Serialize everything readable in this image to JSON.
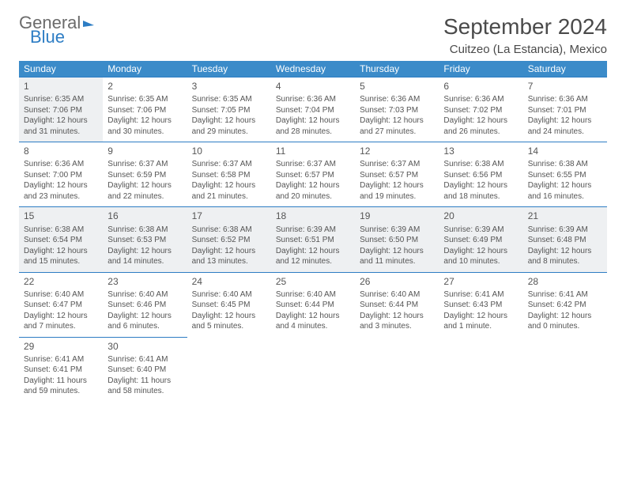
{
  "logo": {
    "text1": "General",
    "text2": "Blue"
  },
  "title": "September 2024",
  "location": "Cuitzeo (La Estancia), Mexico",
  "colors": {
    "accent": "#3b8bc9",
    "border": "#2d7dc4",
    "shade": "#eef0f2"
  },
  "dayHeaders": [
    "Sunday",
    "Monday",
    "Tuesday",
    "Wednesday",
    "Thursday",
    "Friday",
    "Saturday"
  ],
  "weeks": [
    [
      {
        "n": "1",
        "sr": "Sunrise: 6:35 AM",
        "ss": "Sunset: 7:06 PM",
        "dl1": "Daylight: 12 hours",
        "dl2": "and 31 minutes.",
        "shaded": true
      },
      {
        "n": "2",
        "sr": "Sunrise: 6:35 AM",
        "ss": "Sunset: 7:06 PM",
        "dl1": "Daylight: 12 hours",
        "dl2": "and 30 minutes."
      },
      {
        "n": "3",
        "sr": "Sunrise: 6:35 AM",
        "ss": "Sunset: 7:05 PM",
        "dl1": "Daylight: 12 hours",
        "dl2": "and 29 minutes."
      },
      {
        "n": "4",
        "sr": "Sunrise: 6:36 AM",
        "ss": "Sunset: 7:04 PM",
        "dl1": "Daylight: 12 hours",
        "dl2": "and 28 minutes."
      },
      {
        "n": "5",
        "sr": "Sunrise: 6:36 AM",
        "ss": "Sunset: 7:03 PM",
        "dl1": "Daylight: 12 hours",
        "dl2": "and 27 minutes."
      },
      {
        "n": "6",
        "sr": "Sunrise: 6:36 AM",
        "ss": "Sunset: 7:02 PM",
        "dl1": "Daylight: 12 hours",
        "dl2": "and 26 minutes."
      },
      {
        "n": "7",
        "sr": "Sunrise: 6:36 AM",
        "ss": "Sunset: 7:01 PM",
        "dl1": "Daylight: 12 hours",
        "dl2": "and 24 minutes."
      }
    ],
    [
      {
        "n": "8",
        "sr": "Sunrise: 6:36 AM",
        "ss": "Sunset: 7:00 PM",
        "dl1": "Daylight: 12 hours",
        "dl2": "and 23 minutes."
      },
      {
        "n": "9",
        "sr": "Sunrise: 6:37 AM",
        "ss": "Sunset: 6:59 PM",
        "dl1": "Daylight: 12 hours",
        "dl2": "and 22 minutes."
      },
      {
        "n": "10",
        "sr": "Sunrise: 6:37 AM",
        "ss": "Sunset: 6:58 PM",
        "dl1": "Daylight: 12 hours",
        "dl2": "and 21 minutes."
      },
      {
        "n": "11",
        "sr": "Sunrise: 6:37 AM",
        "ss": "Sunset: 6:57 PM",
        "dl1": "Daylight: 12 hours",
        "dl2": "and 20 minutes."
      },
      {
        "n": "12",
        "sr": "Sunrise: 6:37 AM",
        "ss": "Sunset: 6:57 PM",
        "dl1": "Daylight: 12 hours",
        "dl2": "and 19 minutes."
      },
      {
        "n": "13",
        "sr": "Sunrise: 6:38 AM",
        "ss": "Sunset: 6:56 PM",
        "dl1": "Daylight: 12 hours",
        "dl2": "and 18 minutes."
      },
      {
        "n": "14",
        "sr": "Sunrise: 6:38 AM",
        "ss": "Sunset: 6:55 PM",
        "dl1": "Daylight: 12 hours",
        "dl2": "and 16 minutes."
      }
    ],
    [
      {
        "n": "15",
        "sr": "Sunrise: 6:38 AM",
        "ss": "Sunset: 6:54 PM",
        "dl1": "Daylight: 12 hours",
        "dl2": "and 15 minutes.",
        "shaded": true
      },
      {
        "n": "16",
        "sr": "Sunrise: 6:38 AM",
        "ss": "Sunset: 6:53 PM",
        "dl1": "Daylight: 12 hours",
        "dl2": "and 14 minutes.",
        "shaded": true
      },
      {
        "n": "17",
        "sr": "Sunrise: 6:38 AM",
        "ss": "Sunset: 6:52 PM",
        "dl1": "Daylight: 12 hours",
        "dl2": "and 13 minutes.",
        "shaded": true
      },
      {
        "n": "18",
        "sr": "Sunrise: 6:39 AM",
        "ss": "Sunset: 6:51 PM",
        "dl1": "Daylight: 12 hours",
        "dl2": "and 12 minutes.",
        "shaded": true
      },
      {
        "n": "19",
        "sr": "Sunrise: 6:39 AM",
        "ss": "Sunset: 6:50 PM",
        "dl1": "Daylight: 12 hours",
        "dl2": "and 11 minutes.",
        "shaded": true
      },
      {
        "n": "20",
        "sr": "Sunrise: 6:39 AM",
        "ss": "Sunset: 6:49 PM",
        "dl1": "Daylight: 12 hours",
        "dl2": "and 10 minutes.",
        "shaded": true
      },
      {
        "n": "21",
        "sr": "Sunrise: 6:39 AM",
        "ss": "Sunset: 6:48 PM",
        "dl1": "Daylight: 12 hours",
        "dl2": "and 8 minutes.",
        "shaded": true
      }
    ],
    [
      {
        "n": "22",
        "sr": "Sunrise: 6:40 AM",
        "ss": "Sunset: 6:47 PM",
        "dl1": "Daylight: 12 hours",
        "dl2": "and 7 minutes."
      },
      {
        "n": "23",
        "sr": "Sunrise: 6:40 AM",
        "ss": "Sunset: 6:46 PM",
        "dl1": "Daylight: 12 hours",
        "dl2": "and 6 minutes."
      },
      {
        "n": "24",
        "sr": "Sunrise: 6:40 AM",
        "ss": "Sunset: 6:45 PM",
        "dl1": "Daylight: 12 hours",
        "dl2": "and 5 minutes."
      },
      {
        "n": "25",
        "sr": "Sunrise: 6:40 AM",
        "ss": "Sunset: 6:44 PM",
        "dl1": "Daylight: 12 hours",
        "dl2": "and 4 minutes."
      },
      {
        "n": "26",
        "sr": "Sunrise: 6:40 AM",
        "ss": "Sunset: 6:44 PM",
        "dl1": "Daylight: 12 hours",
        "dl2": "and 3 minutes."
      },
      {
        "n": "27",
        "sr": "Sunrise: 6:41 AM",
        "ss": "Sunset: 6:43 PM",
        "dl1": "Daylight: 12 hours",
        "dl2": "and 1 minute."
      },
      {
        "n": "28",
        "sr": "Sunrise: 6:41 AM",
        "ss": "Sunset: 6:42 PM",
        "dl1": "Daylight: 12 hours",
        "dl2": "and 0 minutes."
      }
    ],
    [
      {
        "n": "29",
        "sr": "Sunrise: 6:41 AM",
        "ss": "Sunset: 6:41 PM",
        "dl1": "Daylight: 11 hours",
        "dl2": "and 59 minutes."
      },
      {
        "n": "30",
        "sr": "Sunrise: 6:41 AM",
        "ss": "Sunset: 6:40 PM",
        "dl1": "Daylight: 11 hours",
        "dl2": "and 58 minutes."
      },
      null,
      null,
      null,
      null,
      null
    ]
  ]
}
